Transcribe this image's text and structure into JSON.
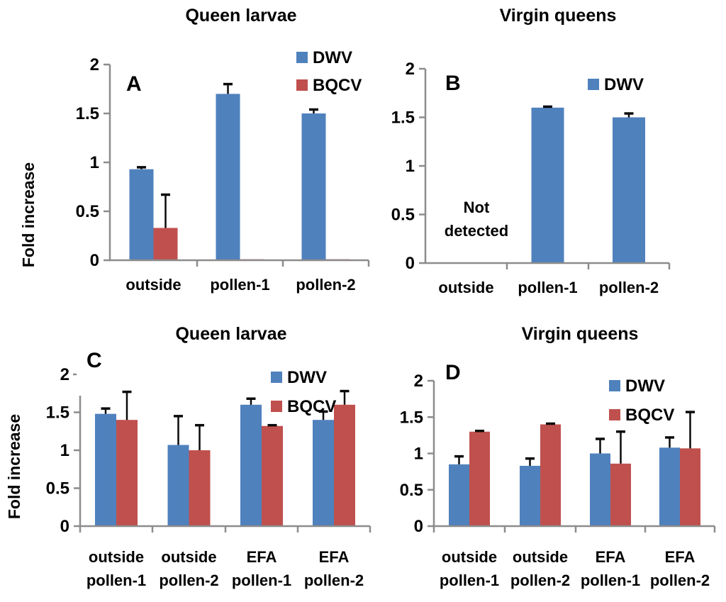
{
  "colors": {
    "dwv_blue": "#4F81BD",
    "bqcv_red": "#C0504D",
    "axis_gray": "#8C8C8C",
    "error_bar_black": "#0a0a0a",
    "text_black": "#000000",
    "background": "#FFFFFF"
  },
  "chart_data": [
    {
      "type": "bar",
      "panel_label": "A",
      "title": "Queen larvae",
      "ylabel": "Fold increase",
      "xlabel": "",
      "ylim": [
        0,
        2
      ],
      "yticks": [
        "0",
        "0.5",
        "1",
        "1.5",
        "2"
      ],
      "grid": false,
      "legend_position": "top-right-inside",
      "legend": [
        "DWV",
        "BQCV"
      ],
      "categories": [
        "outside",
        "pollen-1",
        "pollen-2"
      ],
      "series": [
        {
          "name": "DWV",
          "color": "#4F81BD",
          "values": [
            0.93,
            1.7,
            1.5
          ],
          "errors_up": [
            0.02,
            0.1,
            0.04
          ]
        },
        {
          "name": "BQCV",
          "color": "#C0504D",
          "values": [
            0.33,
            0.01,
            0.01
          ],
          "errors_up": [
            0.34,
            0,
            0
          ]
        }
      ]
    },
    {
      "type": "bar",
      "panel_label": "B",
      "title": "Virgin queens",
      "ylabel": "",
      "xlabel": "",
      "ylim": [
        0,
        2
      ],
      "yticks": [
        "0",
        "0.5",
        "1",
        "1.5",
        "2"
      ],
      "grid": false,
      "legend_position": "top-right-inside",
      "legend": [
        "DWV"
      ],
      "categories": [
        "outside",
        "pollen-1",
        "pollen-2"
      ],
      "annotation": {
        "lines": [
          "Not",
          "detected"
        ],
        "over_category": "outside"
      },
      "series": [
        {
          "name": "DWV",
          "color": "#4F81BD",
          "values": [
            null,
            1.6,
            1.5
          ],
          "errors_up": [
            null,
            0.01,
            0.04
          ]
        }
      ]
    },
    {
      "type": "bar",
      "panel_label": "C",
      "title": "Queen larvae",
      "ylabel": "Fold increase",
      "xlabel": "",
      "ylim": [
        0,
        2
      ],
      "yticks": [
        "0",
        "0.5",
        "1",
        "1.5",
        "2"
      ],
      "grid": false,
      "legend_position": "top-right-inside",
      "legend": [
        "DWV",
        "BQCV"
      ],
      "categories": [
        "outside\npollen-1",
        "outside\npollen-2",
        "EFA\npollen-1",
        "EFA\npollen-2"
      ],
      "series": [
        {
          "name": "DWV",
          "color": "#4F81BD",
          "values": [
            1.48,
            1.07,
            1.6,
            1.4
          ],
          "errors_up": [
            0.07,
            0.38,
            0.08,
            0.11
          ]
        },
        {
          "name": "BQCV",
          "color": "#C0504D",
          "values": [
            1.4,
            1.0,
            1.32,
            1.6
          ],
          "errors_up": [
            0.37,
            0.33,
            0.01,
            0.18
          ]
        }
      ]
    },
    {
      "type": "bar",
      "panel_label": "D",
      "title": "Virgin queens",
      "ylabel": "",
      "xlabel": "",
      "ylim": [
        0,
        2
      ],
      "yticks": [
        "0",
        "0.5",
        "1",
        "1.5",
        "2"
      ],
      "grid": false,
      "legend_position": "top-right-inside",
      "legend": [
        "DWV",
        "BQCV"
      ],
      "categories": [
        "outside\npollen-1",
        "outside\npollen-2",
        "EFA\npollen-1",
        "EFA\npollen-2"
      ],
      "series": [
        {
          "name": "DWV",
          "color": "#4F81BD",
          "values": [
            0.85,
            0.83,
            1.0,
            1.08
          ],
          "errors_up": [
            0.11,
            0.1,
            0.2,
            0.14
          ]
        },
        {
          "name": "BQCV",
          "color": "#C0504D",
          "values": [
            1.3,
            1.4,
            0.86,
            1.07
          ],
          "errors_up": [
            0.01,
            0.01,
            0.44,
            0.5
          ]
        }
      ]
    }
  ]
}
